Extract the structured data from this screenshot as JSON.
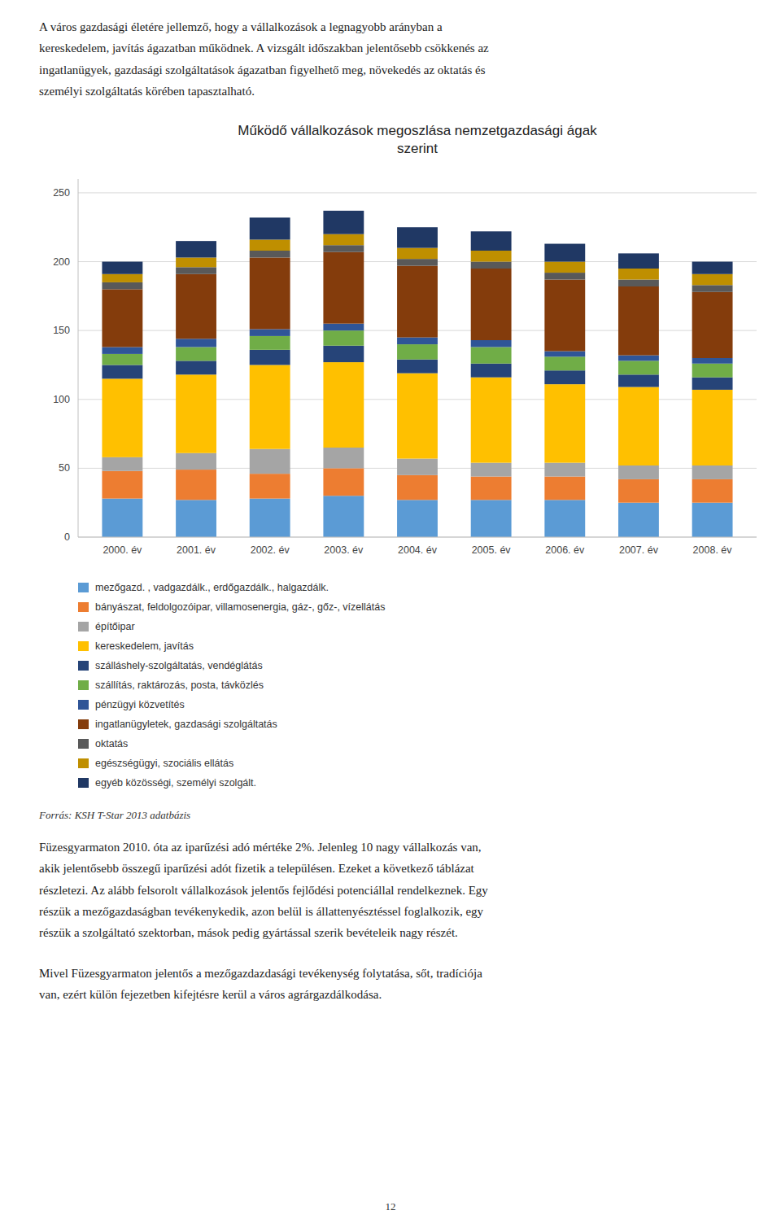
{
  "chart_data": {
    "type": "bar",
    "stacked": true,
    "title": "Működő vállalkozások megoszlása nemzetgazdasági ágak\nszerint",
    "categories": [
      "2000. év",
      "2001. év",
      "2002. év",
      "2003. év",
      "2004. év",
      "2005. év",
      "2006. év",
      "2007. év",
      "2008. év"
    ],
    "series": [
      {
        "name": "mezőgazd. , vadgazdálk., erdőgazdálk., halgazdálk.",
        "color": "#5B9BD5",
        "values": [
          28,
          27,
          28,
          30,
          27,
          27,
          27,
          25,
          25
        ]
      },
      {
        "name": "bányászat, feldolgozóipar, villamosenergia, gáz-, gőz-, vízellátás",
        "color": "#ED7D31",
        "values": [
          20,
          22,
          18,
          20,
          18,
          17,
          17,
          17,
          17
        ]
      },
      {
        "name": "építőipar",
        "color": "#A5A5A5",
        "values": [
          10,
          12,
          18,
          15,
          12,
          10,
          10,
          10,
          10
        ]
      },
      {
        "name": "kereskedelem, javítás",
        "color": "#FFC000",
        "values": [
          57,
          57,
          61,
          62,
          62,
          62,
          57,
          57,
          55
        ]
      },
      {
        "name": "szálláshely-szolgáltatás, vendéglátás",
        "color": "#264478",
        "values": [
          10,
          10,
          11,
          12,
          10,
          10,
          10,
          9,
          9
        ]
      },
      {
        "name": "szállítás, raktározás, posta, távközlés",
        "color": "#70AD47",
        "values": [
          8,
          10,
          10,
          11,
          11,
          12,
          10,
          10,
          10
        ]
      },
      {
        "name": "pénzügyi közvetítés",
        "color": "#2F5597",
        "values": [
          5,
          6,
          5,
          5,
          5,
          5,
          4,
          4,
          4
        ]
      },
      {
        "name": "ingatlanügyletek, gazdasági szolgáltatás",
        "color": "#843C0C",
        "values": [
          42,
          47,
          52,
          52,
          52,
          52,
          52,
          50,
          48
        ]
      },
      {
        "name": "oktatás",
        "color": "#595959",
        "values": [
          5,
          5,
          5,
          5,
          5,
          5,
          5,
          5,
          5
        ]
      },
      {
        "name": "egészségügyi, szociális ellátás",
        "color": "#BF8F00",
        "values": [
          6,
          7,
          8,
          8,
          8,
          8,
          8,
          8,
          8
        ]
      },
      {
        "name": "egyéb közösségi, személyi szolgált.",
        "color": "#203864",
        "values": [
          9,
          12,
          16,
          17,
          15,
          14,
          13,
          11,
          9
        ]
      }
    ],
    "ylim": [
      0,
      260
    ],
    "yticks": [
      0,
      50,
      100,
      150,
      200,
      250
    ],
    "grid": true,
    "legend": "bottom"
  },
  "paragraphs_before": [
    "A város gazdasági életére jellemző, hogy a vállalkozások a legnagyobb arányban a\nkereskedelem, javítás ágazatban működnek. A vizsgált időszakban jelentősebb csökkenés az\ningatlanügyek, gazdasági szolgáltatások ágazatban figyelhető meg, növekedés az oktatás és\nszemélyi szolgáltatás körében tapasztalható."
  ],
  "source": "Forrás: KSH T-Star 2013 adatbázis",
  "paragraphs_after": [
    "Füzesgyarmaton 2010. óta az iparűzési adó mértéke 2%. Jelenleg 10 nagy vállalkozás van,\nakik jelentősebb összegű iparűzési adót fizetik a településen. Ezeket a következő táblázat\nrészletezi. Az alább felsorolt vállalkozások jelentős fejlődési potenciállal rendelkeznek. Egy\nrészük a mezőgazdaságban tevékenykedik, azon belül is állattenyésztéssel foglalkozik, egy\nrészük a szolgáltató szektorban, mások pedig gyártással szerik bevételeik nagy részét.",
    "Mivel Füzesgyarmaton jelentős a mezőgazdazdasági tevékenység folytatása, sőt, tradíciója\nvan, ezért külön fejezetben kifejtésre kerül a város agrárgazdálkodása."
  ],
  "page_number": "12"
}
